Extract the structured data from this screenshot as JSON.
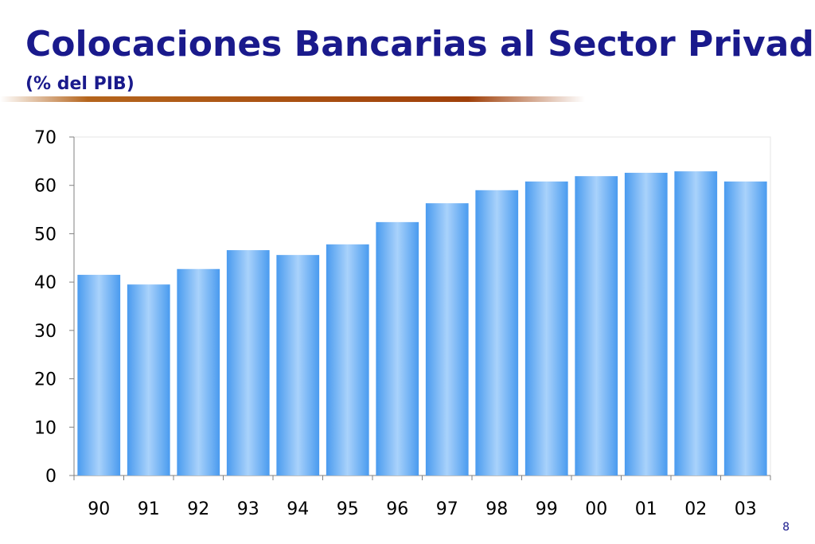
{
  "chart_data": {
    "type": "bar",
    "title": "Colocaciones Bancarias al Sector Privado",
    "subtitle": "(% del PIB)",
    "categories": [
      "90",
      "91",
      "92",
      "93",
      "94",
      "95",
      "96",
      "97",
      "98",
      "99",
      "00",
      "01",
      "02",
      "03"
    ],
    "values": [
      41.5,
      39.5,
      42.7,
      46.6,
      45.6,
      47.8,
      52.4,
      56.3,
      59.0,
      60.8,
      61.9,
      62.6,
      62.9,
      60.8
    ],
    "color": "#4a9bef",
    "ylim": [
      0,
      70
    ],
    "yticks": [
      0,
      10,
      20,
      30,
      40,
      50,
      60,
      70
    ],
    "grid": false
  },
  "page_number": "8"
}
